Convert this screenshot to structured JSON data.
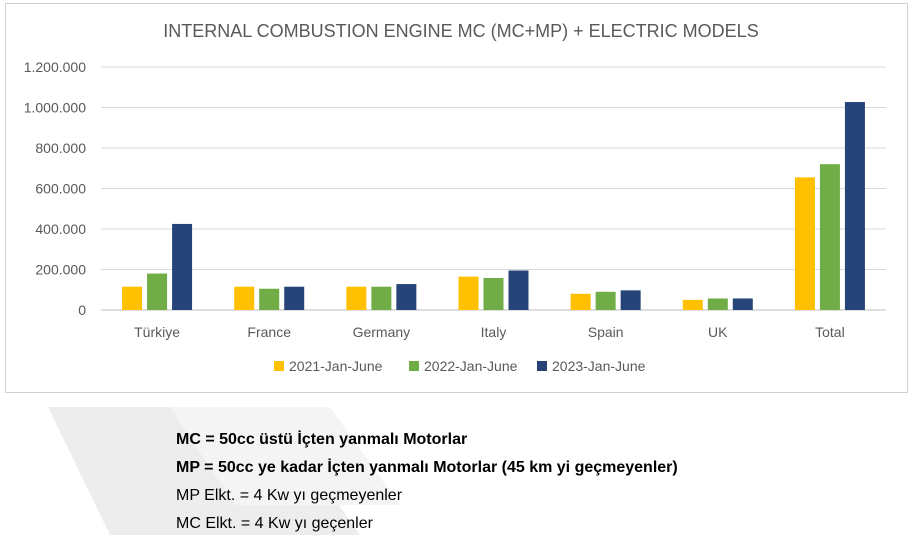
{
  "chart_data": {
    "type": "bar",
    "title": "INTERNAL COMBUSTION ENGINE MC (MC+MP) + ELECTRIC MODELS",
    "categories": [
      "Türkiye",
      "France",
      "Germany",
      "Italy",
      "Spain",
      "UK",
      "Total"
    ],
    "series": [
      {
        "name": "2021-Jan-June",
        "color": "#FFC000",
        "values": [
          115000,
          115000,
          115000,
          165000,
          80000,
          50000,
          655000
        ]
      },
      {
        "name": "2022-Jan-June",
        "color": "#70AD47",
        "values": [
          180000,
          105000,
          115000,
          158000,
          90000,
          57000,
          720000
        ]
      },
      {
        "name": "2023-Jan-June",
        "color": "#264478",
        "values": [
          425000,
          115000,
          128000,
          195000,
          97000,
          57000,
          1027000
        ]
      }
    ],
    "ylim": [
      0,
      1200000
    ],
    "yticks": [
      0,
      200000,
      400000,
      600000,
      800000,
      1000000,
      1200000
    ],
    "ytick_labels": [
      "0",
      "200.000",
      "400.000",
      "600.000",
      "800.000",
      "1.000.000",
      "1.200.000"
    ],
    "grid": true,
    "legend": "bottom"
  },
  "notes": [
    {
      "text": "MC = 50cc üstü İçten yanmalı Motorlar",
      "bold": true
    },
    {
      "text": "MP = 50cc ye kadar İçten yanmalı Motorlar (45 km yi geçmeyenler)",
      "bold": true
    },
    {
      "text": "MP Elkt. = 4 Kw yı geçmeyenler",
      "bold": false
    },
    {
      "text": "MC Elkt. = 4 Kw yı geçenler",
      "bold": false
    }
  ]
}
